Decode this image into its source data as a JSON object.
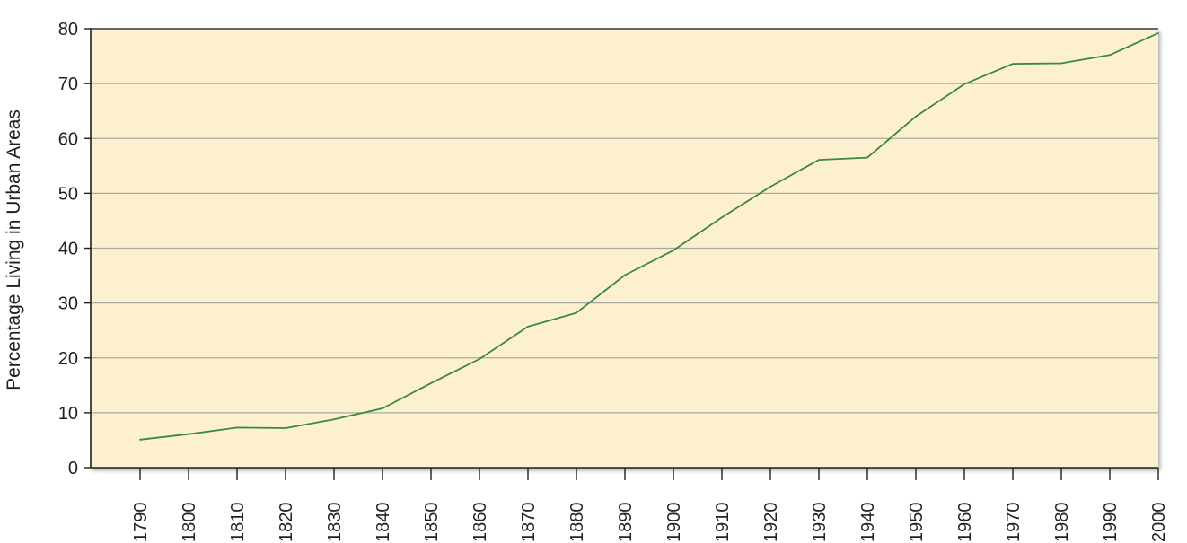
{
  "chart_data": {
    "type": "line",
    "title": "",
    "xlabel": "",
    "ylabel": "Percentage Living in Urban Areas",
    "x": [
      1790,
      1800,
      1810,
      1820,
      1830,
      1840,
      1850,
      1860,
      1870,
      1880,
      1890,
      1900,
      1910,
      1920,
      1930,
      1940,
      1950,
      1960,
      1970,
      1980,
      1990,
      2000
    ],
    "x_tick_labels": [
      "1790",
      "1800",
      "1810",
      "1820",
      "1830",
      "1840",
      "1850",
      "1860",
      "1870",
      "1880",
      "1890",
      "1900",
      "1910",
      "1920",
      "1930",
      "1940",
      "1950",
      "1960",
      "1970",
      "1980",
      "1990",
      "2000"
    ],
    "series": [
      {
        "values": [
          5.1,
          6.1,
          7.3,
          7.2,
          8.8,
          10.8,
          15.4,
          19.8,
          25.7,
          28.2,
          35.1,
          39.6,
          45.6,
          51.2,
          56.1,
          56.5,
          64.0,
          69.9,
          73.6,
          73.7,
          75.2,
          79.2
        ]
      }
    ],
    "ylim": [
      0,
      80
    ],
    "y_ticks": [
      0,
      10,
      20,
      30,
      40,
      50,
      60,
      70,
      80
    ],
    "y_tick_labels": [
      "0",
      "10",
      "20",
      "30",
      "40",
      "50",
      "60",
      "70",
      "80"
    ],
    "grid": true,
    "legend": "none",
    "colors": {
      "line": "#3a8a3a",
      "plot_background": "#fdf0cf",
      "gridline": "#a9a9a9",
      "axis": "#231f20"
    }
  }
}
